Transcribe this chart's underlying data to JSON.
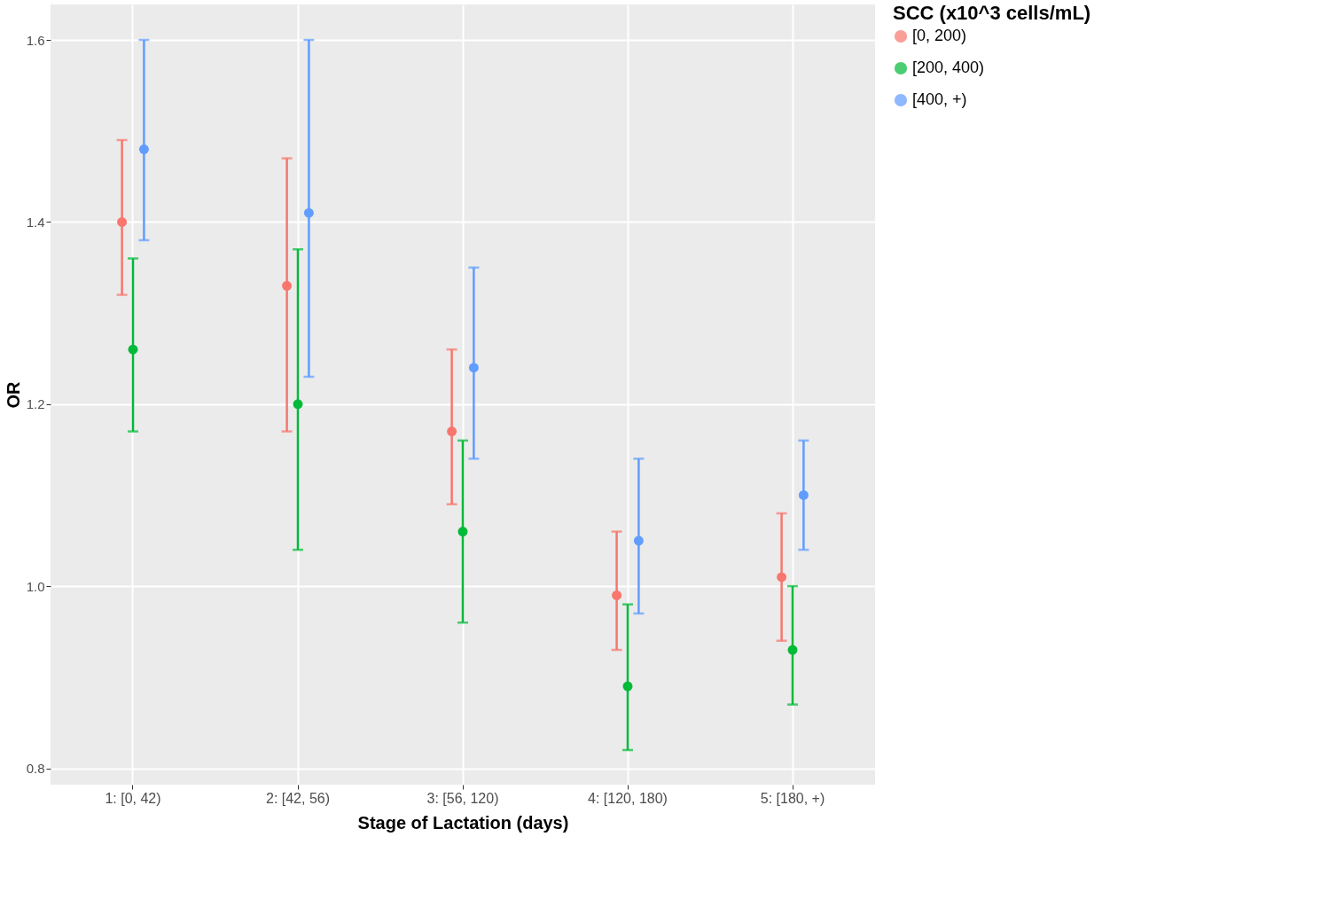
{
  "chart_data": {
    "type": "scatter",
    "xlabel": "Stage of Lactation (days)",
    "ylabel": "OR",
    "legend_title": "SCC (x10^3 cells/mL)",
    "categories": [
      "1: [0, 42)",
      "2: [42, 56)",
      "3: [56, 120)",
      "4: [120, 180)",
      "5: [180, +)"
    ],
    "series": [
      {
        "name": "[0, 200)",
        "color": "#f8766d",
        "values": [
          1.4,
          1.33,
          1.17,
          0.99,
          1.01
        ],
        "errors": [
          [
            1.32,
            1.49
          ],
          [
            1.17,
            1.47
          ],
          [
            1.09,
            1.26
          ],
          [
            0.93,
            1.06
          ],
          [
            0.94,
            1.08
          ]
        ]
      },
      {
        "name": "[200, 400)",
        "color": "#00ba38",
        "values": [
          1.26,
          1.2,
          1.06,
          0.89,
          0.93
        ],
        "errors": [
          [
            1.17,
            1.36
          ],
          [
            1.04,
            1.37
          ],
          [
            0.96,
            1.16
          ],
          [
            0.82,
            0.98
          ],
          [
            0.87,
            1.0
          ]
        ]
      },
      {
        "name": "[400, +)",
        "color": "#619cff",
        "values": [
          1.48,
          1.41,
          1.24,
          1.05,
          1.1
        ],
        "errors": [
          [
            1.38,
            1.6
          ],
          [
            1.23,
            1.6
          ],
          [
            1.14,
            1.35
          ],
          [
            0.97,
            1.14
          ],
          [
            1.04,
            1.16
          ]
        ]
      }
    ],
    "ylim": [
      0.782,
      1.639
    ],
    "yticks": [
      {
        "value": 0.8,
        "label": "0.8"
      },
      {
        "value": 1.0,
        "label": "1.0"
      },
      {
        "value": 1.2,
        "label": "1.2"
      },
      {
        "value": 1.4,
        "label": "1.4"
      },
      {
        "value": 1.6,
        "label": "1.6"
      }
    ],
    "grid": true,
    "legend": "right",
    "marker": "circle"
  }
}
